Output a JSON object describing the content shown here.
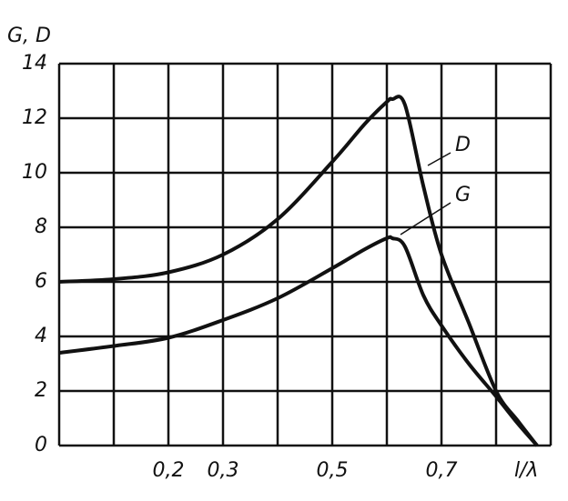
{
  "chart_data": {
    "type": "line",
    "y_label": "G, D",
    "x_label": "l/λ",
    "x": [
      0,
      0.1,
      0.2,
      0.3,
      0.4,
      0.5,
      0.56,
      0.6,
      0.61,
      0.633,
      0.667,
      0.7,
      0.75,
      0.8,
      0.84,
      0.875
    ],
    "series": [
      {
        "name": "D",
        "color": "#111111",
        "values": [
          6.0,
          6.1,
          6.35,
          7.0,
          8.3,
          10.4,
          11.8,
          12.6,
          12.7,
          12.5,
          9.5,
          7.0,
          4.5,
          2.0,
          0.9,
          0
        ]
      },
      {
        "name": "G",
        "color": "#111111",
        "values": [
          3.4,
          3.65,
          3.95,
          4.6,
          5.4,
          6.5,
          7.2,
          7.6,
          7.6,
          7.3,
          5.5,
          4.4,
          3.0,
          1.8,
          0.8,
          0
        ]
      }
    ],
    "xlim": [
      0,
      0.9
    ],
    "ylim": [
      0,
      14
    ],
    "xticks": [
      {
        "value": 0.2,
        "label": "0,2"
      },
      {
        "value": 0.3,
        "label": "0,3"
      },
      {
        "value": 0.5,
        "label": "0,5"
      },
      {
        "value": 0.7,
        "label": "0,7"
      }
    ],
    "xgrid": [
      0,
      0.1,
      0.2,
      0.3,
      0.4,
      0.5,
      0.6,
      0.7,
      0.8,
      0.9
    ],
    "yticks": [
      0,
      2,
      4,
      6,
      8,
      10,
      12,
      14
    ],
    "grid": true
  }
}
